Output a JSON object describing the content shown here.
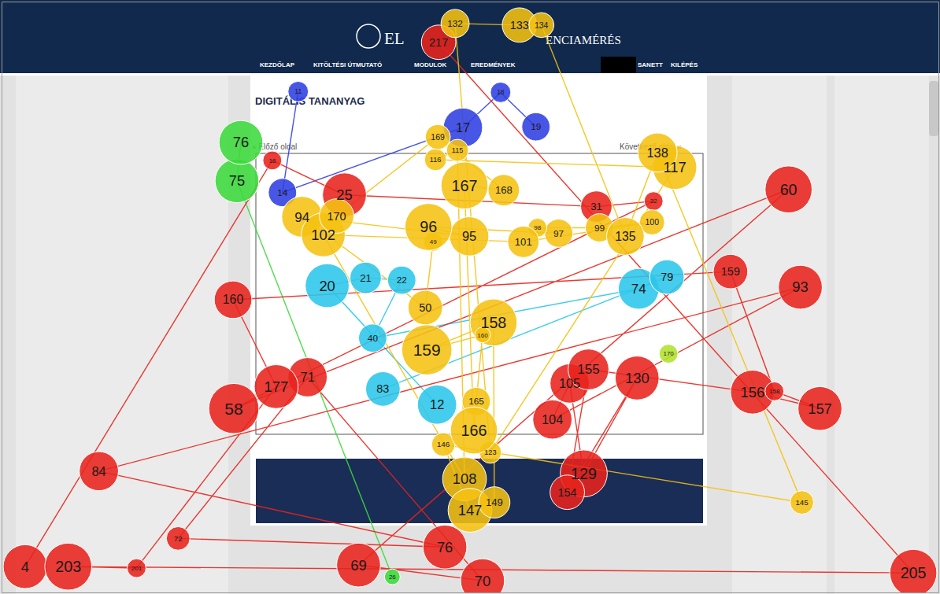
{
  "chart_data": {
    "type": "scatter",
    "marker": "circle",
    "line_style": "solid",
    "tick_labels": false,
    "xlim": [
      0,
      1194
    ],
    "ylim": [
      0,
      755
    ],
    "annotations": [
      "EL",
      "ENCIAMÉRÉS",
      "KEZDŐLAP",
      "KITÖLTÉSI ÚTMUTATÓ",
      "MODULOK",
      "EREDMÉNYEK",
      "SANETT",
      "KILÉPÉS",
      "DIGITÁLIS TANANYAG",
      "« Előző oldal",
      "Következő oldal »"
    ],
    "series": [
      {
        "color": "#2bc6ea",
        "labels": [
          12,
          20,
          21,
          22,
          40,
          74,
          79,
          83
        ],
        "x": [
          555,
          415,
          464,
          510,
          473,
          812,
          848,
          486
        ],
        "values": [
          515,
          363,
          353,
          356,
          430,
          367,
          352,
          495
        ],
        "sizes": [
          25,
          28,
          20,
          18,
          18,
          26,
          22,
          22
        ]
      },
      {
        "color": "#3bd93b",
        "labels": [
          26,
          75,
          76
        ],
        "x": [
          498,
          300,
          305
        ],
        "values": [
          735,
          229,
          180
        ],
        "sizes": [
          10,
          28,
          28
        ]
      },
      {
        "color": "#b0e32b",
        "labels": [
          170
        ],
        "x": [
          850
        ],
        "values": [
          450
        ],
        "sizes": [
          12
        ]
      },
      {
        "color": "#2f3fe3",
        "labels": [
          11,
          14,
          17,
          18,
          19
        ],
        "x": [
          378,
          358,
          588,
          636,
          681
        ],
        "values": [
          115,
          244,
          161,
          116,
          160
        ],
        "sizes": [
          13,
          18,
          25,
          13,
          18
        ]
      },
      {
        "color": "#e8231c",
        "labels": [
          4,
          18,
          25,
          31,
          32,
          58,
          60,
          69,
          70,
          71,
          72,
          76,
          84,
          93,
          104,
          105,
          129,
          130,
          154,
          155,
          156,
          157,
          158,
          159,
          160,
          177,
          201,
          203,
          205,
          217
        ],
        "x": [
          30,
          345,
          437,
          758,
          831,
          296,
          1003,
          455,
          613,
          390,
          225,
          565,
          124,
          1018,
          702,
          724,
          742,
          810,
          721,
          748,
          957,
          1043,
          985,
          929,
          295,
          350,
          172,
          85,
          1162,
          557
        ],
        "values": [
          722,
          203,
          247,
          262,
          255,
          520,
          240,
          720,
          740,
          480,
          686,
          697,
          600,
          365,
          534,
          488,
          603,
          481,
          627,
          470,
          499,
          520,
          498,
          345,
          381,
          492,
          724,
          722,
          730,
          52
        ],
        "sizes": [
          28,
          12,
          28,
          20,
          12,
          32,
          30,
          28,
          28,
          25,
          15,
          28,
          25,
          28,
          25,
          25,
          30,
          28,
          22,
          26,
          28,
          28,
          12,
          22,
          24,
          28,
          12,
          30,
          30,
          22
        ]
      },
      {
        "color": "#f5c211",
        "labels": [
          49,
          50,
          94,
          95,
          96,
          97,
          98,
          99,
          100,
          101,
          102,
          108,
          115,
          116,
          117,
          123,
          132,
          133,
          134,
          135,
          138,
          145,
          146,
          147,
          149,
          158,
          159,
          160,
          165,
          166,
          167,
          168,
          169,
          170
        ],
        "x": [
          550,
          540,
          383,
          596,
          544,
          710,
          683,
          762,
          829,
          665,
          410,
          590,
          581,
          553,
          858,
          623,
          578,
          660,
          688,
          795,
          836,
          1020,
          563,
          597,
          628,
          627,
          542,
          613,
          605,
          602,
          590,
          640,
          556,
          427
        ],
        "values": [
          307,
          391,
          275,
          300,
          288,
          296,
          289,
          289,
          282,
          307,
          298,
          610,
          190,
          202,
          212,
          576,
          28,
          30,
          30,
          300,
          193,
          640,
          566,
          650,
          640,
          410,
          445,
          426,
          511,
          548,
          235,
          241,
          173,
          274
        ],
        "sizes": [
          12,
          22,
          26,
          25,
          30,
          18,
          12,
          18,
          16,
          20,
          28,
          28,
          14,
          14,
          28,
          14,
          18,
          22,
          16,
          24,
          25,
          15,
          15,
          28,
          20,
          30,
          32,
          10,
          18,
          30,
          30,
          20,
          16,
          22
        ]
      }
    ]
  }
}
